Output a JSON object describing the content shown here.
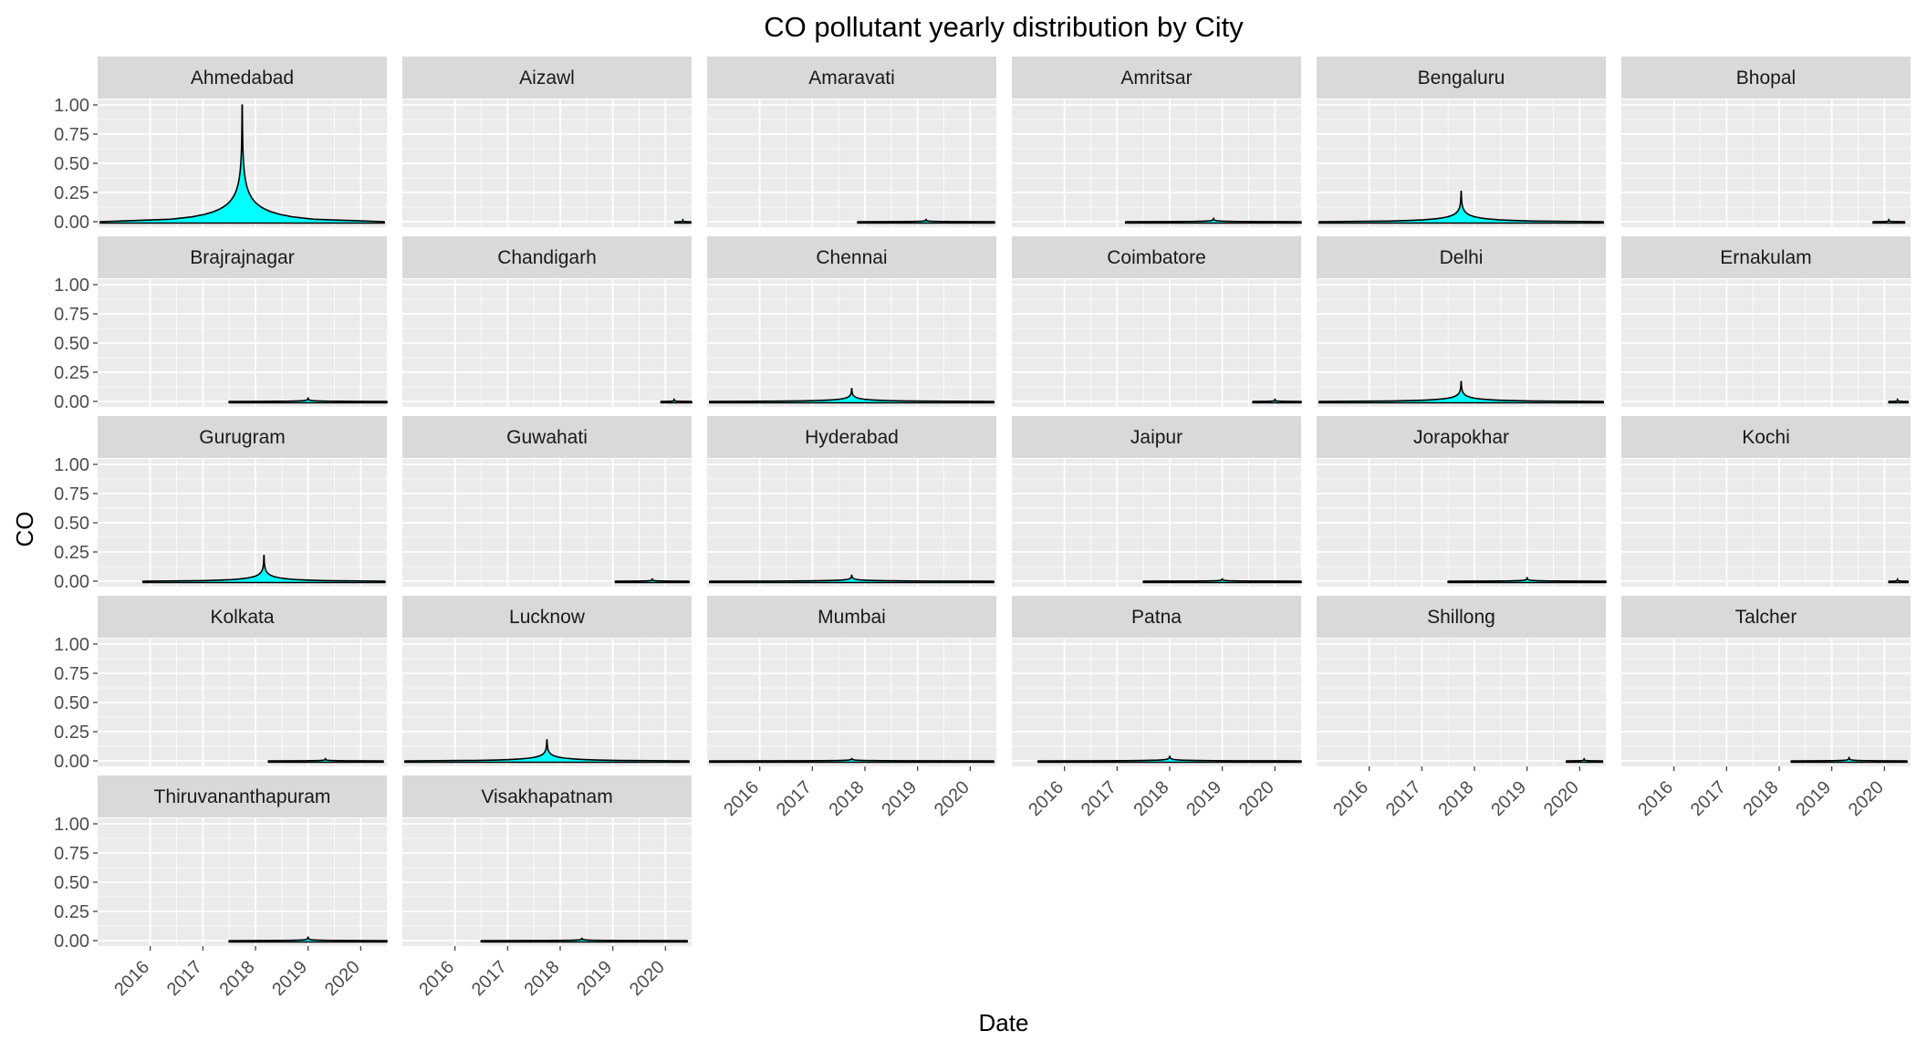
{
  "chart_data": {
    "type": "violin",
    "title": "CO pollutant yearly distribution by City",
    "xlabel": "Date",
    "ylabel": "CO",
    "x_ticks": [
      "2016",
      "2017",
      "2018",
      "2019",
      "2020"
    ],
    "y_ticks": [
      "0.00",
      "0.25",
      "0.50",
      "0.75",
      "1.00"
    ],
    "ylim": [
      0,
      1
    ],
    "xlim": [
      "2015-01-01",
      "2020-07-01"
    ],
    "fill_color": "#00ffff",
    "outline_color": "#000000",
    "panel_background": "#ebebeb",
    "strip_background": "#d9d9d9",
    "grid": true,
    "panels": [
      {
        "city": "Ahmedabad",
        "x_start": "2015-01-01",
        "x_end": "2020-07-01",
        "x_center": "2017-10-01",
        "y_min": 0.0,
        "y_max": 1.0,
        "max_half_width_years": 2.7
      },
      {
        "city": "Aizawl",
        "x_start": "2020-03-01",
        "x_end": "2020-07-01",
        "x_center": "2020-05-01",
        "y_min": 0.0,
        "y_max": 0.02,
        "max_half_width_years": 0.15
      },
      {
        "city": "Amaravati",
        "x_start": "2017-11-01",
        "x_end": "2020-07-01",
        "x_center": "2019-03-01",
        "y_min": 0.0,
        "y_max": 0.02,
        "max_half_width_years": 1.3
      },
      {
        "city": "Amritsar",
        "x_start": "2017-03-01",
        "x_end": "2020-07-01",
        "x_center": "2018-11-01",
        "y_min": 0.0,
        "y_max": 0.03,
        "max_half_width_years": 1.7
      },
      {
        "city": "Bengaluru",
        "x_start": "2015-01-01",
        "x_end": "2020-07-01",
        "x_center": "2017-10-01",
        "y_min": 0.0,
        "y_max": 0.26,
        "max_half_width_years": 2.7
      },
      {
        "city": "Bhopal",
        "x_start": "2019-10-01",
        "x_end": "2020-07-01",
        "x_center": "2020-02-01",
        "y_min": 0.0,
        "y_max": 0.02,
        "max_half_width_years": 0.3
      },
      {
        "city": "Brajrajnagar",
        "x_start": "2017-07-01",
        "x_end": "2020-07-01",
        "x_center": "2019-01-01",
        "y_min": 0.0,
        "y_max": 0.03,
        "max_half_width_years": 1.5
      },
      {
        "city": "Chandigarh",
        "x_start": "2019-12-01",
        "x_end": "2020-07-01",
        "x_center": "2020-03-01",
        "y_min": 0.0,
        "y_max": 0.02,
        "max_half_width_years": 0.35
      },
      {
        "city": "Chennai",
        "x_start": "2015-01-01",
        "x_end": "2020-07-01",
        "x_center": "2017-10-01",
        "y_min": 0.0,
        "y_max": 0.11,
        "max_half_width_years": 2.7
      },
      {
        "city": "Coimbatore",
        "x_start": "2019-08-01",
        "x_end": "2020-07-01",
        "x_center": "2020-01-01",
        "y_min": 0.0,
        "y_max": 0.02,
        "max_half_width_years": 0.5
      },
      {
        "city": "Delhi",
        "x_start": "2015-01-01",
        "x_end": "2020-07-01",
        "x_center": "2017-10-01",
        "y_min": 0.0,
        "y_max": 0.17,
        "max_half_width_years": 2.7
      },
      {
        "city": "Ernakulam",
        "x_start": "2020-02-01",
        "x_end": "2020-07-01",
        "x_center": "2020-04-01",
        "y_min": 0.0,
        "y_max": 0.02,
        "max_half_width_years": 0.2
      },
      {
        "city": "Gurugram",
        "x_start": "2015-11-01",
        "x_end": "2020-07-01",
        "x_center": "2018-03-01",
        "y_min": 0.0,
        "y_max": 0.22,
        "max_half_width_years": 2.3
      },
      {
        "city": "Guwahati",
        "x_start": "2019-01-01",
        "x_end": "2020-07-01",
        "x_center": "2019-10-01",
        "y_min": 0.0,
        "y_max": 0.02,
        "max_half_width_years": 0.7
      },
      {
        "city": "Hyderabad",
        "x_start": "2015-01-01",
        "x_end": "2020-07-01",
        "x_center": "2017-10-01",
        "y_min": 0.0,
        "y_max": 0.05,
        "max_half_width_years": 2.7
      },
      {
        "city": "Jaipur",
        "x_start": "2017-07-01",
        "x_end": "2020-07-01",
        "x_center": "2019-01-01",
        "y_min": 0.0,
        "y_max": 0.02,
        "max_half_width_years": 1.5
      },
      {
        "city": "Jorapokhar",
        "x_start": "2017-06-01",
        "x_end": "2020-07-01",
        "x_center": "2019-01-01",
        "y_min": 0.0,
        "y_max": 0.03,
        "max_half_width_years": 1.5
      },
      {
        "city": "Kochi",
        "x_start": "2020-02-01",
        "x_end": "2020-07-01",
        "x_center": "2020-04-01",
        "y_min": 0.0,
        "y_max": 0.02,
        "max_half_width_years": 0.2
      },
      {
        "city": "Kolkata",
        "x_start": "2018-04-01",
        "x_end": "2020-07-01",
        "x_center": "2019-05-01",
        "y_min": 0.0,
        "y_max": 0.02,
        "max_half_width_years": 1.1
      },
      {
        "city": "Lucknow",
        "x_start": "2015-01-01",
        "x_end": "2020-07-01",
        "x_center": "2017-10-01",
        "y_min": 0.0,
        "y_max": 0.18,
        "max_half_width_years": 2.7
      },
      {
        "city": "Mumbai",
        "x_start": "2015-01-01",
        "x_end": "2020-07-01",
        "x_center": "2017-10-01",
        "y_min": 0.0,
        "y_max": 0.02,
        "max_half_width_years": 2.7
      },
      {
        "city": "Patna",
        "x_start": "2015-06-01",
        "x_end": "2020-07-01",
        "x_center": "2018-01-01",
        "y_min": 0.0,
        "y_max": 0.04,
        "max_half_width_years": 2.5
      },
      {
        "city": "Shillong",
        "x_start": "2019-10-01",
        "x_end": "2020-07-01",
        "x_center": "2020-02-01",
        "y_min": 0.0,
        "y_max": 0.02,
        "max_half_width_years": 0.35
      },
      {
        "city": "Talcher",
        "x_start": "2018-03-01",
        "x_end": "2020-07-01",
        "x_center": "2019-05-01",
        "y_min": 0.0,
        "y_max": 0.03,
        "max_half_width_years": 1.1
      },
      {
        "city": "Thiruvananthapuram",
        "x_start": "2017-07-01",
        "x_end": "2020-07-01",
        "x_center": "2019-01-01",
        "y_min": 0.0,
        "y_max": 0.03,
        "max_half_width_years": 1.5
      },
      {
        "city": "Visakhapatnam",
        "x_start": "2016-07-01",
        "x_end": "2020-07-01",
        "x_center": "2018-06-01",
        "y_min": 0.0,
        "y_max": 0.02,
        "max_half_width_years": 2.0
      }
    ]
  }
}
